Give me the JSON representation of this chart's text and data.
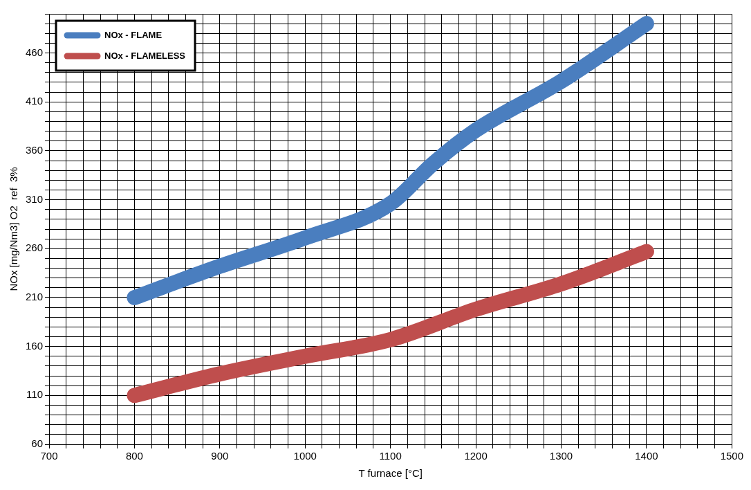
{
  "chart_data": {
    "type": "line",
    "xlabel": "T furnace [°C]",
    "ylabel": "NOx [mg/Nm3] O2  ref  3%",
    "series": [
      {
        "name": "NOx - FLAME",
        "color": "#4a7ebf",
        "x": [
          800,
          900,
          1000,
          1100,
          1150,
          1200,
          1300,
          1400
        ],
        "values": [
          210,
          242,
          271,
          306,
          347,
          381,
          431,
          490
        ]
      },
      {
        "name": "NOx - FLAMELESS",
        "color": "#bf4e4d",
        "x": [
          800,
          900,
          1000,
          1100,
          1200,
          1300,
          1400
        ],
        "values": [
          110,
          132,
          150,
          167,
          198,
          224,
          257
        ]
      }
    ],
    "xlim": [
      700,
      1500
    ],
    "xticks": [
      700,
      {
        "value": 720,
        "label": null
      },
      {
        "value": 740,
        "label": null
      },
      {
        "value": 760,
        "label": null
      },
      {
        "value": 780,
        "label": null
      },
      800,
      {
        "value": 820,
        "label": null
      },
      {
        "value": 840,
        "label": null
      },
      {
        "value": 860,
        "label": null
      },
      {
        "value": 880,
        "label": null
      },
      900,
      {
        "value": 920,
        "label": null
      },
      {
        "value": 940,
        "label": null
      },
      {
        "value": 960,
        "label": null
      },
      {
        "value": 980,
        "label": null
      },
      1000,
      {
        "value": 1020,
        "label": null
      },
      {
        "value": 1040,
        "label": null
      },
      {
        "value": 1060,
        "label": null
      },
      {
        "value": 1080,
        "label": null
      },
      1100,
      {
        "value": 1120,
        "label": null
      },
      {
        "value": 1140,
        "label": null
      },
      {
        "value": 1160,
        "label": null
      },
      {
        "value": 1180,
        "label": null
      },
      1200,
      {
        "value": 1220,
        "label": null
      },
      {
        "value": 1240,
        "label": null
      },
      {
        "value": 1260,
        "label": null
      },
      {
        "value": 1280,
        "label": null
      },
      1300,
      {
        "value": 1320,
        "label": null
      },
      {
        "value": 1340,
        "label": null
      },
      {
        "value": 1360,
        "label": null
      },
      {
        "value": 1380,
        "label": null
      },
      1400,
      {
        "value": 1420,
        "label": null
      },
      {
        "value": 1440,
        "label": null
      },
      {
        "value": 1460,
        "label": null
      },
      {
        "value": 1480,
        "label": null
      },
      1500
    ],
    "ylim": [
      60,
      500
    ],
    "yticks": [
      60,
      {
        "value": 70,
        "label": null
      },
      {
        "value": 80,
        "label": null
      },
      {
        "value": 90,
        "label": null
      },
      {
        "value": 100,
        "label": null
      },
      110,
      {
        "value": 120,
        "label": null
      },
      {
        "value": 130,
        "label": null
      },
      {
        "value": 140,
        "label": null
      },
      {
        "value": 150,
        "label": null
      },
      160,
      {
        "value": 170,
        "label": null
      },
      {
        "value": 180,
        "label": null
      },
      {
        "value": 190,
        "label": null
      },
      {
        "value": 200,
        "label": null
      },
      210,
      {
        "value": 220,
        "label": null
      },
      {
        "value": 230,
        "label": null
      },
      {
        "value": 240,
        "label": null
      },
      {
        "value": 250,
        "label": null
      },
      260,
      {
        "value": 270,
        "label": null
      },
      {
        "value": 280,
        "label": null
      },
      {
        "value": 290,
        "label": null
      },
      {
        "value": 300,
        "label": null
      },
      310,
      {
        "value": 320,
        "label": null
      },
      {
        "value": 330,
        "label": null
      },
      {
        "value": 340,
        "label": null
      },
      {
        "value": 350,
        "label": null
      },
      360,
      {
        "value": 370,
        "label": null
      },
      {
        "value": 380,
        "label": null
      },
      {
        "value": 390,
        "label": null
      },
      {
        "value": 400,
        "label": null
      },
      410,
      {
        "value": 420,
        "label": null
      },
      {
        "value": 430,
        "label": null
      },
      {
        "value": 440,
        "label": null
      },
      {
        "value": 450,
        "label": null
      },
      460,
      {
        "value": 470,
        "label": null
      },
      {
        "value": 480,
        "label": null
      },
      {
        "value": 490,
        "label": null
      },
      {
        "value": 500,
        "label": null
      }
    ],
    "grid": true,
    "legend": "top left",
    "marker": "none",
    "line_style": "solid"
  }
}
